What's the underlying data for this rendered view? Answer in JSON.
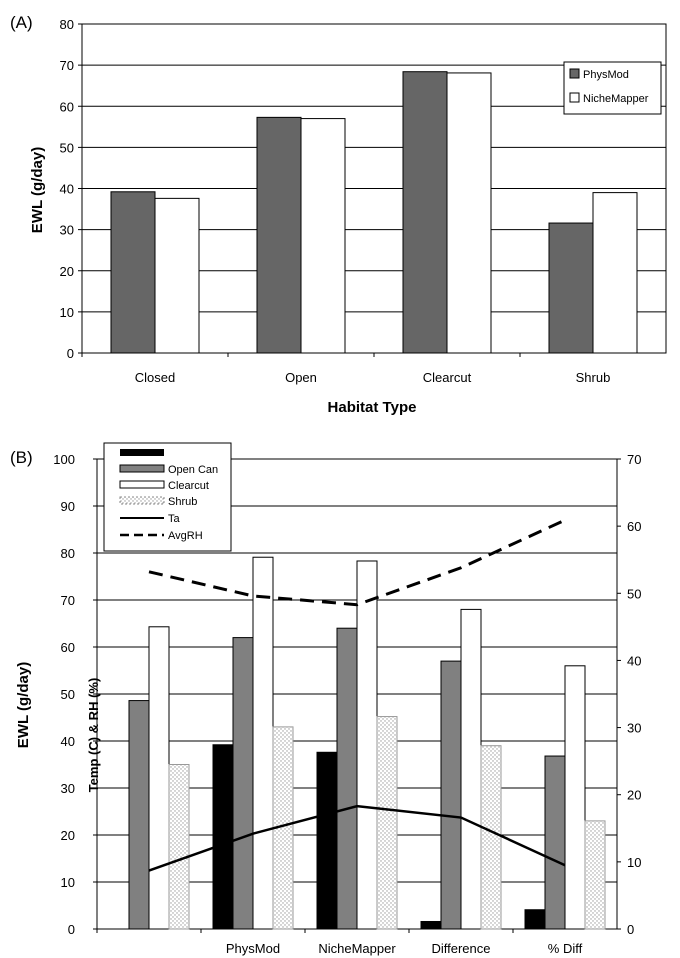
{
  "chart_data": [
    {
      "type": "bar",
      "panel_label": "(A)",
      "categories": [
        "Closed",
        "Open",
        "Clearcut",
        "Shrub"
      ],
      "series": [
        {
          "name": "PhysMod",
          "values": [
            39.2,
            57.3,
            68.4,
            31.6
          ],
          "color": "#666666",
          "pattern": "solid"
        },
        {
          "name": "NicheMapper",
          "values": [
            37.6,
            57.0,
            68.1,
            39.0
          ],
          "color": "#ffffff",
          "pattern": "solid"
        }
      ],
      "xlabel": "Habitat Type",
      "ylabel": "EWL (g/day)",
      "ylim": [
        0,
        80
      ],
      "yticks": [
        0,
        10,
        20,
        30,
        40,
        50,
        60,
        70,
        80
      ],
      "grid": true,
      "legend_position": "right"
    },
    {
      "type": "bar",
      "panel_label": "(B)",
      "categories": [
        "",
        "PhysMod",
        "NicheMapper",
        "Difference",
        "% Diff"
      ],
      "series": [
        {
          "name": "",
          "values": [
            0,
            39.2,
            37.6,
            1.6,
            4.1
          ],
          "color": "#000000",
          "pattern": "solid"
        },
        {
          "name": "Open Can",
          "values": [
            48.6,
            62.0,
            64.0,
            57.0,
            36.8
          ],
          "color": "#808080",
          "pattern": "solid"
        },
        {
          "name": "Clearcut",
          "values": [
            64.3,
            79.1,
            78.3,
            68.0,
            56.0
          ],
          "color": "#ffffff",
          "pattern": "solid"
        },
        {
          "name": "Shrub",
          "values": [
            35.0,
            43.0,
            45.2,
            39.0,
            23.0
          ],
          "color": "#ffffff",
          "pattern": "dotted"
        }
      ],
      "lines": [
        {
          "name": "Ta",
          "axis": "right",
          "values": [
            8.7,
            14.2,
            18.3,
            16.6,
            9.5
          ],
          "style": "solid"
        },
        {
          "name": "AvgRH",
          "axis": "right",
          "values": [
            53.2,
            49.6,
            48.3,
            53.8,
            60.9
          ],
          "style": "dashed"
        }
      ],
      "ylabel": "EWL (g/day)",
      "ylabel2": "Temp (C) & RH (%)",
      "ylim": [
        0,
        100
      ],
      "yticks": [
        0,
        10,
        20,
        30,
        40,
        50,
        60,
        70,
        80,
        90,
        100
      ],
      "ylim_right": [
        0,
        70
      ],
      "yticks_right": [
        0,
        10,
        20,
        30,
        40,
        50,
        60,
        70
      ],
      "grid": true,
      "legend_position": "top-left"
    }
  ]
}
